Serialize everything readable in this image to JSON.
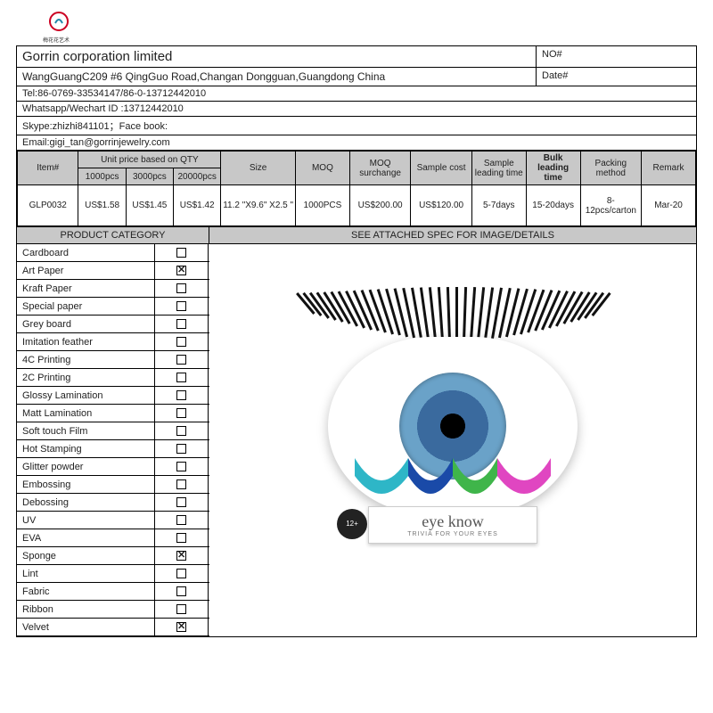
{
  "logo_text": "梅花花艺术",
  "header": {
    "company": "Gorrin corporation limited",
    "no_label": "NO#",
    "date_label": "Date#",
    "address": "WangGuangC209 #6 QingGuo Road,Changan Dongguan,Guangdong China",
    "tel": "Tel:86-0769-33534147/86-0-13712442010",
    "whatsapp": "Whatsapp/Wechart ID :13712442010",
    "skype": "Skype:zhizhi841101；Face book:",
    "email": "Email:gigi_tan@gorrinjewelry.com"
  },
  "price_table": {
    "headers": {
      "item": "Item#",
      "unit_group": "Unit price based on QTY",
      "q1": "1000pcs",
      "q2": "3000pcs",
      "q3": "20000pcs",
      "size": "Size",
      "moq": "MOQ",
      "moq_sur": "MOQ surchange",
      "sample_cost": "Sample cost",
      "sample_lead": "Sample leading time",
      "bulk_lead": "Bulk leading time",
      "packing": "Packing method",
      "remark": "Remark"
    },
    "row": {
      "item": "GLP0032",
      "p1": "US$1.58",
      "p2": "US$1.45",
      "p3": "US$1.42",
      "size": "11.2 \"X9.6\" X2.5 \"",
      "moq": "1000PCS",
      "moq_sur": "US$200.00",
      "sample_cost": "US$120.00",
      "sample_lead": "5-7days",
      "bulk_lead": "15-20days",
      "packing": "8-12pcs/carton",
      "remark": "Mar-20"
    }
  },
  "sections": {
    "cat": "PRODUCT CATEGORY",
    "spec": "SEE ATTACHED SPEC FOR IMAGE/DETAILS"
  },
  "categories": [
    {
      "label": "Cardboard",
      "checked": false
    },
    {
      "label": "Art Paper",
      "checked": true
    },
    {
      "label": "Kraft Paper",
      "checked": false
    },
    {
      "label": "Special paper",
      "checked": false
    },
    {
      "label": "Grey board",
      "checked": false
    },
    {
      "label": "Imitation feather",
      "checked": false
    },
    {
      "label": "4C Printing",
      "checked": false
    },
    {
      "label": "2C Printing",
      "checked": false
    },
    {
      "label": "Glossy Lamination",
      "checked": false
    },
    {
      "label": "Matt Lamination",
      "checked": false
    },
    {
      "label": "Soft touch Film",
      "checked": false
    },
    {
      "label": "Hot Stamping",
      "checked": false
    },
    {
      "label": "Glitter powder",
      "checked": false
    },
    {
      "label": "Embossing",
      "checked": false
    },
    {
      "label": "Debossing",
      "checked": false
    },
    {
      "label": "UV",
      "checked": false
    },
    {
      "label": "EVA",
      "checked": false
    },
    {
      "label": "Sponge",
      "checked": true
    },
    {
      "label": "Lint",
      "checked": false
    },
    {
      "label": "Fabric",
      "checked": false
    },
    {
      "label": "Ribbon",
      "checked": false
    },
    {
      "label": "Velvet",
      "checked": true
    }
  ],
  "product": {
    "title": "eye know",
    "subtitle": "TRIVIA FOR YOUR EYES",
    "age": "12+",
    "arc_colors": [
      "#2eb6c7",
      "#1a4aa8",
      "#3fb54a",
      "#e046c1"
    ]
  }
}
